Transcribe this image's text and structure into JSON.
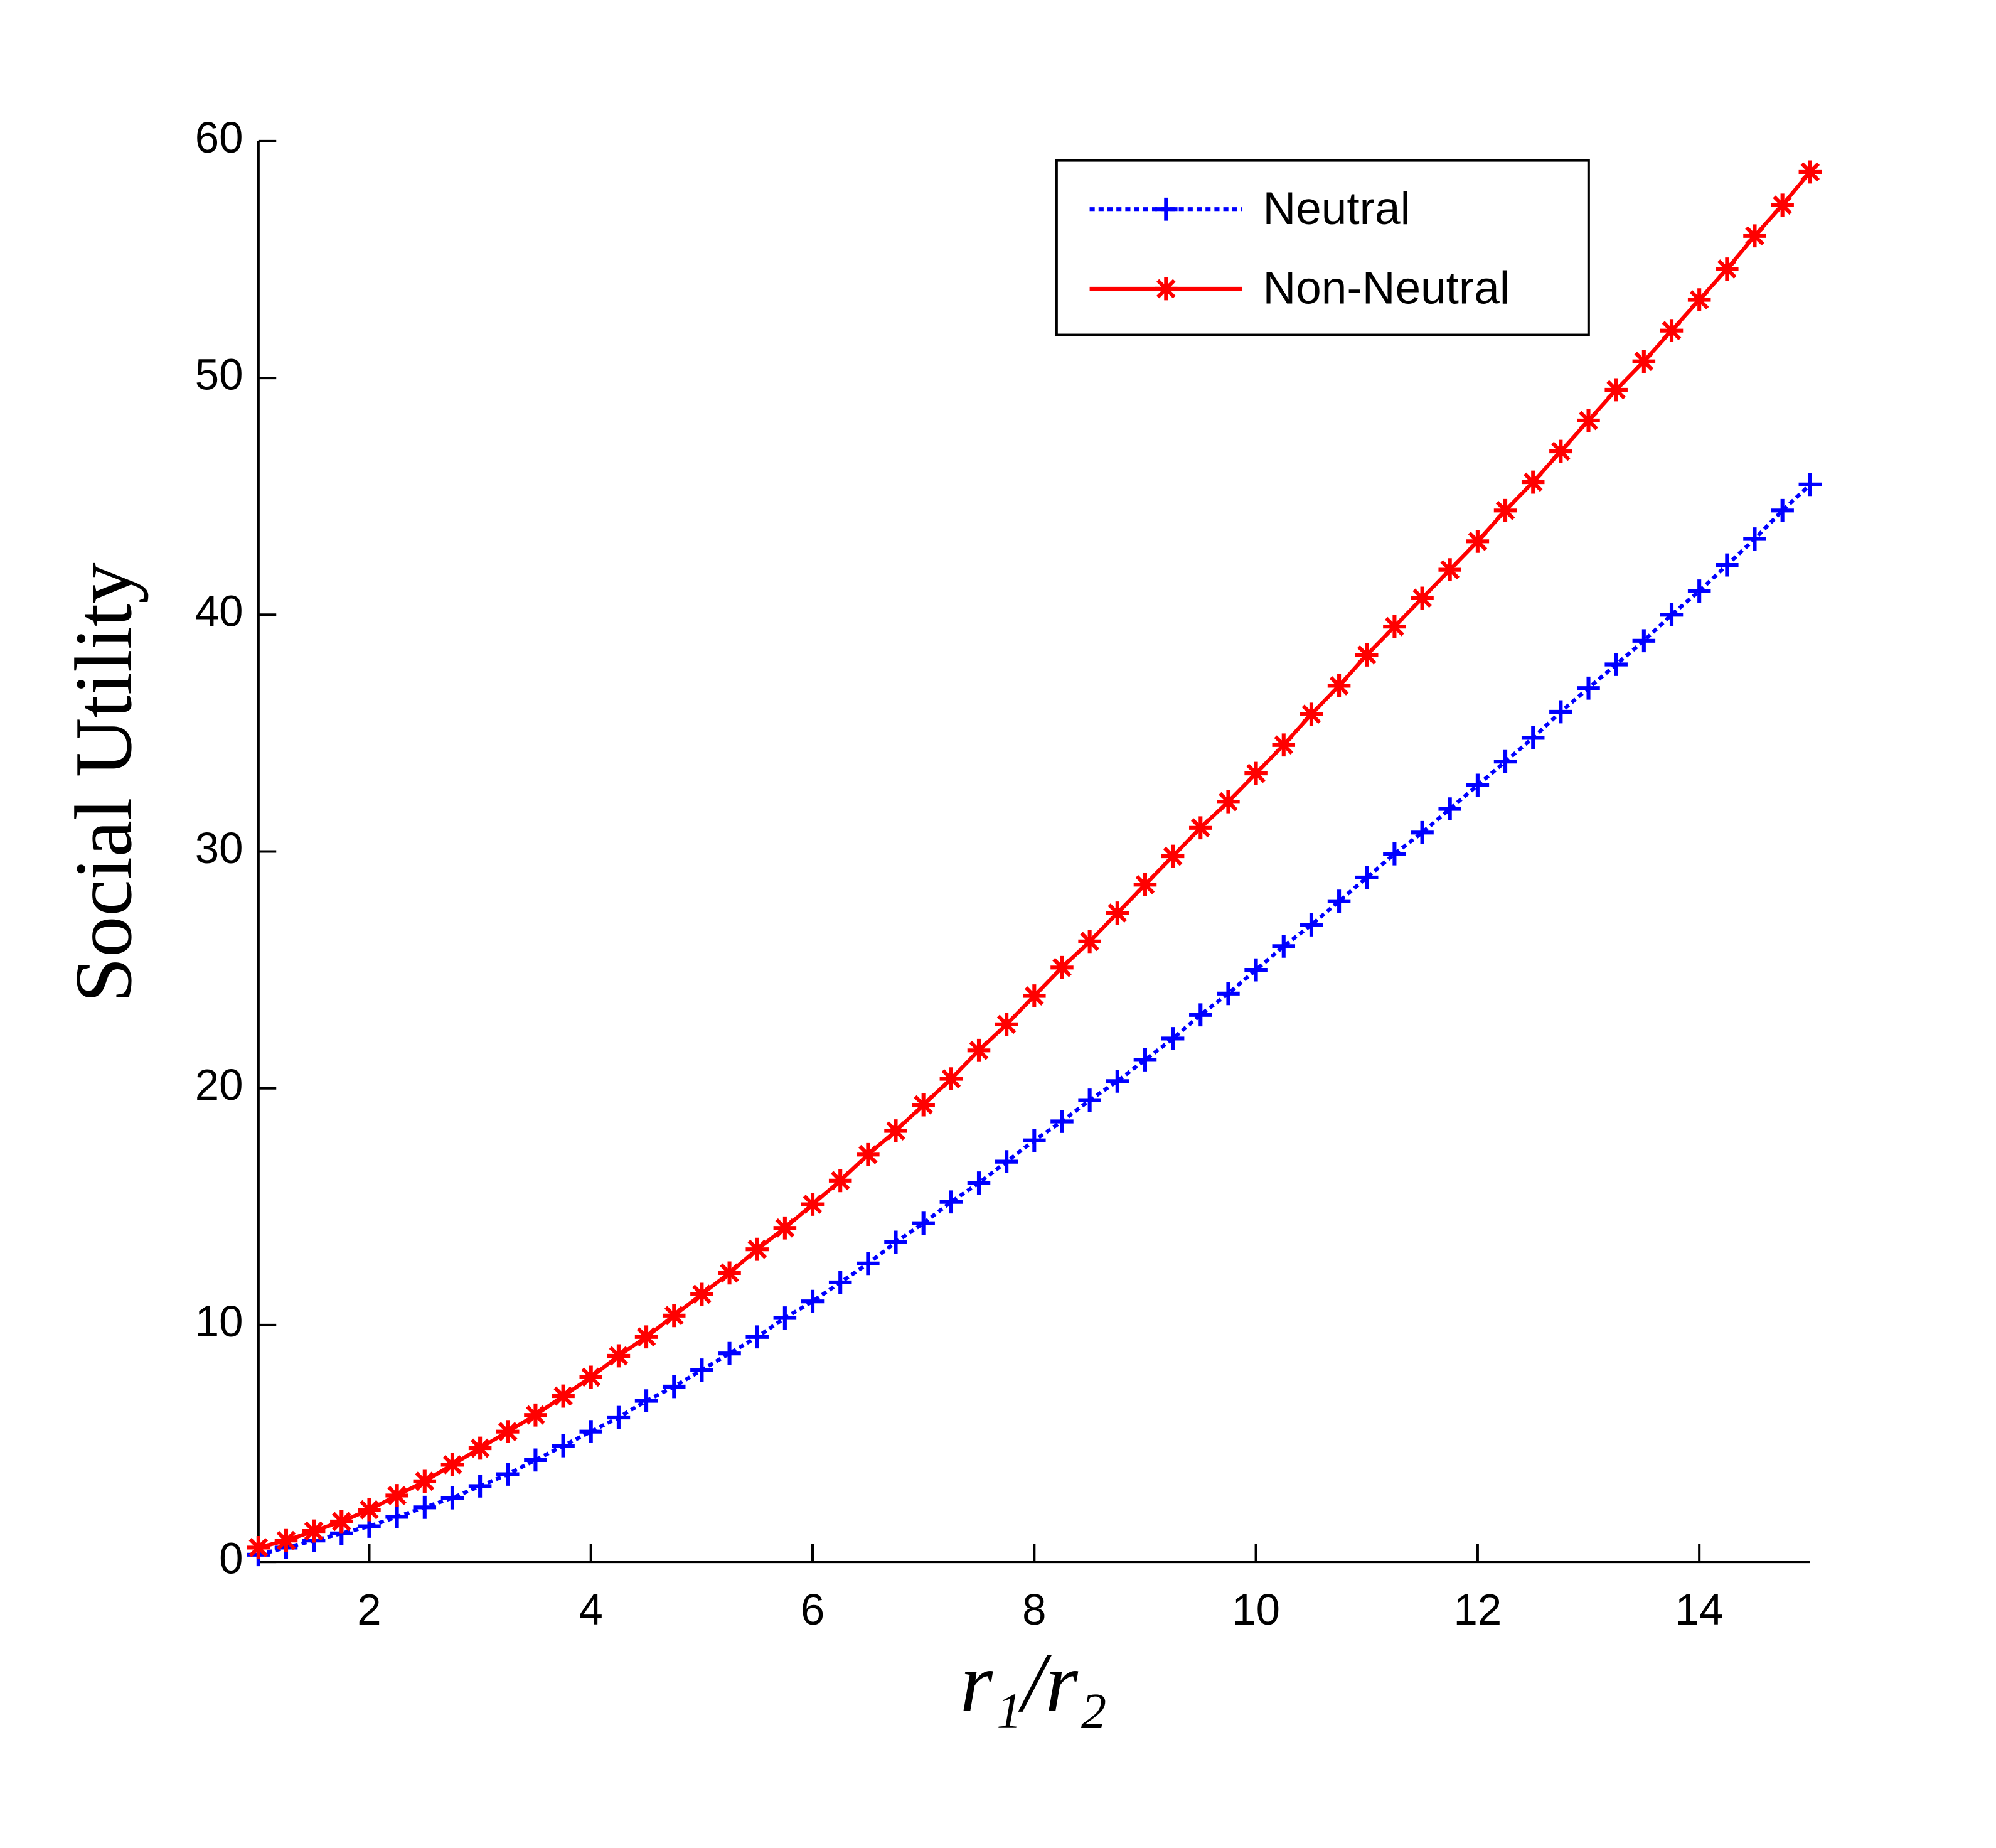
{
  "chart_data": {
    "type": "line",
    "x_label": "r₁/r₂",
    "y_label": "Social Utility",
    "x": [
      1,
      1.25,
      1.5,
      1.75,
      2,
      2.25,
      2.5,
      2.75,
      3,
      3.25,
      3.5,
      3.75,
      4,
      4.25,
      4.5,
      4.75,
      5,
      5.25,
      5.5,
      5.75,
      6,
      6.25,
      6.5,
      6.75,
      7,
      7.25,
      7.5,
      7.75,
      8,
      8.25,
      8.5,
      8.75,
      9,
      9.25,
      9.5,
      9.75,
      10,
      10.25,
      10.5,
      10.75,
      11,
      11.25,
      11.5,
      11.75,
      12,
      12.25,
      12.5,
      12.75,
      13,
      13.25,
      13.5,
      13.75,
      14,
      14.25,
      14.5,
      14.75,
      15
    ],
    "series": [
      {
        "name": "Neutral",
        "color": "#0000ff",
        "line_style": "dotted",
        "marker": "+",
        "values": [
          0.3,
          0.6,
          0.9,
          1.2,
          1.5,
          1.9,
          2.3,
          2.7,
          3.2,
          3.7,
          4.3,
          4.9,
          5.5,
          6.1,
          6.8,
          7.4,
          8.1,
          8.8,
          9.5,
          10.3,
          11.0,
          11.8,
          12.6,
          13.5,
          14.3,
          15.2,
          16.0,
          16.9,
          17.8,
          18.6,
          19.5,
          20.3,
          21.2,
          22.1,
          23.1,
          24.0,
          25.0,
          26.0,
          26.9,
          27.9,
          28.9,
          29.9,
          30.8,
          31.8,
          32.8,
          33.8,
          34.8,
          35.9,
          36.9,
          37.9,
          38.9,
          40.0,
          41.0,
          42.1,
          43.2,
          44.4,
          45.5
        ]
      },
      {
        "name": "Non-Neutral",
        "color": "#ff0000",
        "line_style": "solid",
        "marker": "*",
        "values": [
          0.6,
          0.9,
          1.3,
          1.7,
          2.2,
          2.8,
          3.4,
          4.1,
          4.8,
          5.5,
          6.2,
          7.0,
          7.8,
          8.7,
          9.5,
          10.4,
          11.3,
          12.2,
          13.2,
          14.1,
          15.1,
          16.1,
          17.2,
          18.2,
          19.3,
          20.4,
          21.6,
          22.7,
          23.9,
          25.1,
          26.2,
          27.4,
          28.6,
          29.8,
          31.0,
          32.1,
          33.3,
          34.5,
          35.8,
          37.0,
          38.3,
          39.5,
          40.7,
          41.9,
          43.1,
          44.4,
          45.6,
          46.9,
          48.2,
          49.5,
          50.7,
          52.0,
          53.3,
          54.6,
          56.0,
          57.3,
          58.7
        ]
      }
    ],
    "xlim": [
      1,
      15
    ],
    "xticks": [
      2,
      4,
      6,
      8,
      10,
      12,
      14
    ],
    "ylim": [
      0,
      60
    ],
    "yticks": [
      0,
      10,
      20,
      30,
      40,
      50,
      60
    ],
    "grid": false,
    "legend_position": "upper right"
  }
}
